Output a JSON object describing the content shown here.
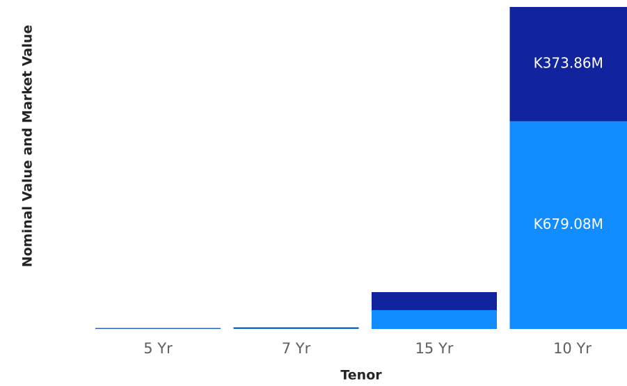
{
  "chart_data": {
    "type": "stacked_bar",
    "x_label": "Tenor",
    "y_label": "Nominal Value and Market Value",
    "categories": [
      "5 Yr",
      "7 Yr",
      "15 Yr",
      "10 Yr"
    ],
    "series": [
      {
        "color": "#118dff",
        "values": [
          1,
          2,
          61.5,
          679.08
        ],
        "value_labels": [
          null,
          null,
          null,
          "K679.08M"
        ]
      },
      {
        "color": "#12239e",
        "values": [
          2,
          3,
          59,
          373.86
        ],
        "value_labels": [
          null,
          null,
          null,
          "K373.86M"
        ]
      }
    ]
  }
}
